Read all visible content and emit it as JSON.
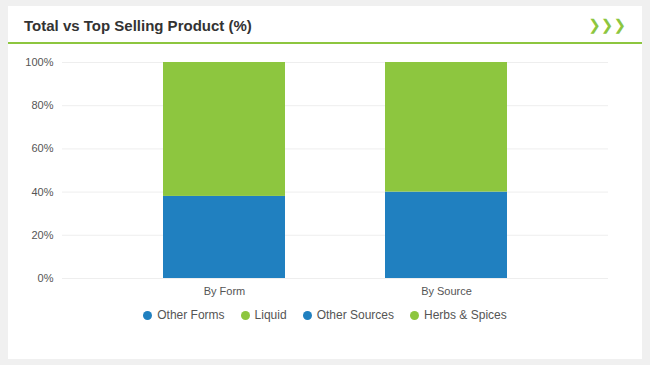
{
  "chart_data": {
    "type": "bar",
    "title": "Total vs Top Selling Product (%)",
    "categories": [
      "By Form",
      "By Source"
    ],
    "series": [
      {
        "name": "Other Forms",
        "color": "#2080C0",
        "values": [
          38,
          null
        ]
      },
      {
        "name": "Liquid",
        "color": "#8DC63F",
        "values": [
          62,
          null
        ]
      },
      {
        "name": "Other Sources",
        "color": "#2080C0",
        "values": [
          null,
          40
        ]
      },
      {
        "name": "Herbs & Spices",
        "color": "#8DC63F",
        "values": [
          null,
          60
        ]
      }
    ],
    "stacked": true,
    "ylim": [
      0,
      100
    ],
    "yticks": [
      {
        "value": 0,
        "label": "0%"
      },
      {
        "value": 20,
        "label": "20%"
      },
      {
        "value": 40,
        "label": "40%"
      },
      {
        "value": 60,
        "label": "60%"
      },
      {
        "value": 80,
        "label": "80%"
      },
      {
        "value": 100,
        "label": "100%"
      }
    ],
    "grid": true,
    "legend": "bottom",
    "annotations": [
      {
        "text": "❯❯❯",
        "color": "#8DC63F"
      }
    ]
  }
}
